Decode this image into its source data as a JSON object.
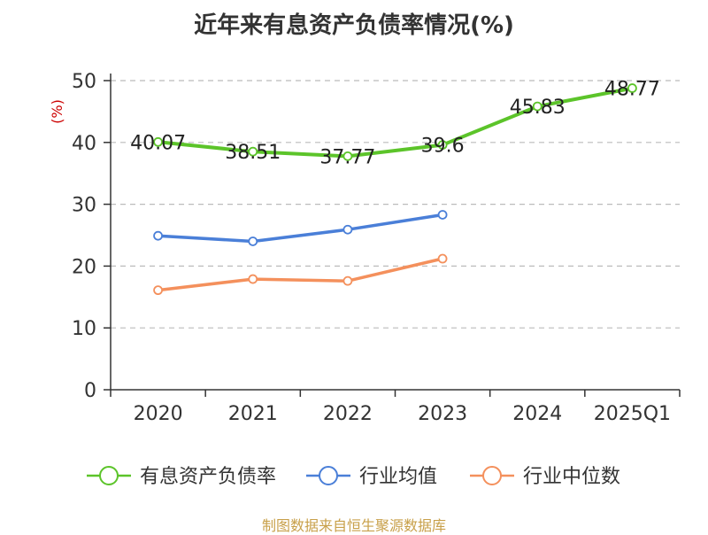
{
  "chart_data": {
    "type": "line",
    "title": "近年来有息资产负债率情况(%)",
    "ylabel": "(%)",
    "ylim": [
      0,
      50
    ],
    "yticks": [
      0,
      10,
      20,
      30,
      40,
      50
    ],
    "categories": [
      "2020",
      "2021",
      "2022",
      "2023",
      "2024",
      "2025Q1"
    ],
    "grid": true,
    "legend_position": "bottom",
    "series": [
      {
        "name": "有息资产负债率",
        "color": "#5cc42a",
        "values": [
          40.07,
          38.51,
          37.77,
          39.6,
          45.83,
          48.77
        ],
        "labels": [
          "40.07",
          "38.51",
          "37.77",
          "39.6",
          "45.83",
          "48.77"
        ]
      },
      {
        "name": "行业均值",
        "color": "#4a7fd8",
        "values": [
          24.9,
          24.0,
          25.9,
          28.3,
          null,
          null
        ]
      },
      {
        "name": "行业中位数",
        "color": "#f4905c",
        "values": [
          16.1,
          17.9,
          17.6,
          21.2,
          null,
          null
        ]
      }
    ],
    "source": "制图数据来自恒生聚源数据库"
  }
}
